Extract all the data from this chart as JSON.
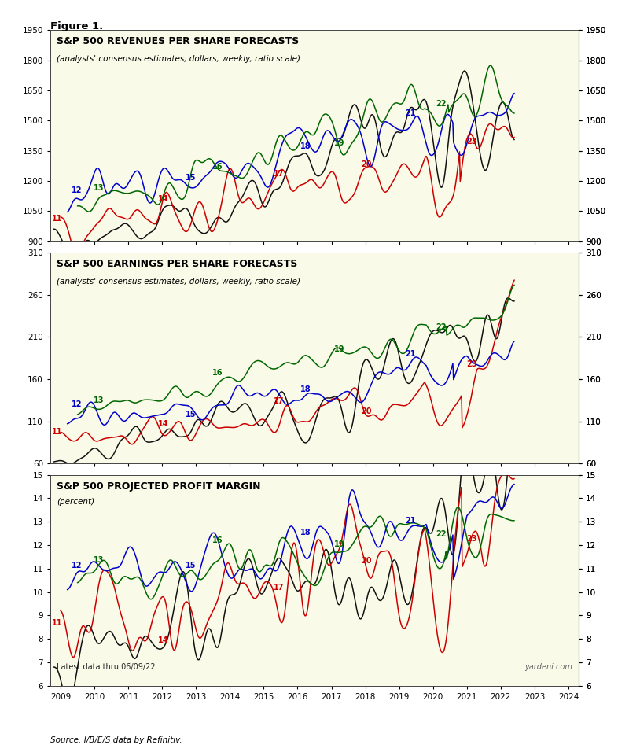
{
  "fig_label": "Figure 1.",
  "bg_color": "#FAFAE8",
  "outer_bg": "#FFFFFF",
  "panel1": {
    "title": "S&P 500 REVENUES PER SHARE FORECASTS",
    "subtitle": "(analysts' consensus estimates, dollars, weekly, ratio scale)",
    "ylim": [
      900,
      1950
    ],
    "yticks": [
      900,
      1050,
      1200,
      1350,
      1500,
      1650,
      1800,
      1950
    ]
  },
  "panel2": {
    "title": "S&P 500 EARNINGS PER SHARE FORECASTS",
    "subtitle": "(analysts' consensus estimates, dollars, weekly, ratio scale)",
    "ylim": [
      60,
      310
    ],
    "yticks": [
      60,
      110,
      160,
      210,
      260,
      310
    ]
  },
  "panel3": {
    "title": "S&P 500 PROJECTED PROFIT MARGIN",
    "subtitle": "(percent)",
    "ylim": [
      6,
      15
    ],
    "yticks": [
      6,
      7,
      8,
      9,
      10,
      11,
      12,
      13,
      14,
      15
    ],
    "footnote": "Latest data thru 06/09/22",
    "source": "Source: I/B/E/S data by Refinitiv.",
    "watermark": "yardeni.com"
  },
  "xlim_start": 2008.7,
  "xlim_end": 2024.3,
  "xticks": [
    2009,
    2010,
    2011,
    2012,
    2013,
    2014,
    2015,
    2016,
    2017,
    2018,
    2019,
    2020,
    2021,
    2022,
    2023,
    2024
  ],
  "colors": {
    "red": "#CC0000",
    "blue": "#0000CC",
    "green": "#006600",
    "black": "#111111"
  },
  "title_fontsize": 9.0,
  "subtitle_fontsize": 7.5,
  "tick_fontsize": 7.5,
  "anno_fontsize": 7.0
}
